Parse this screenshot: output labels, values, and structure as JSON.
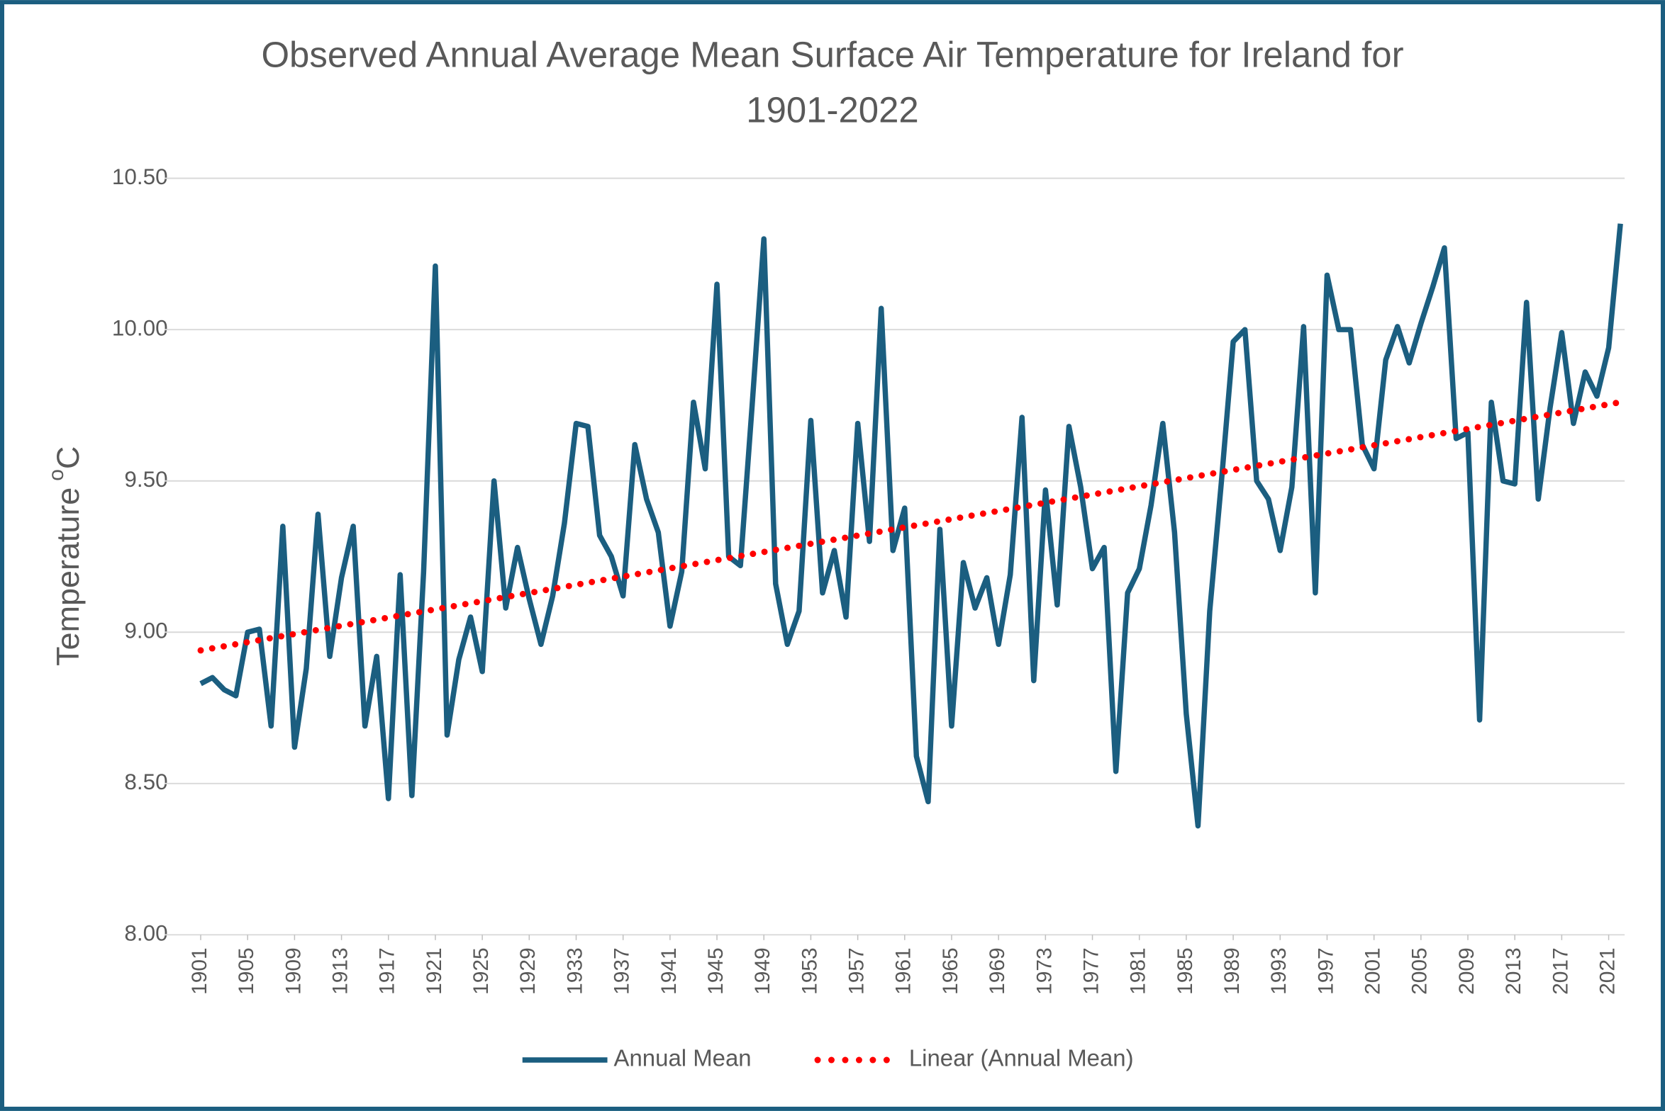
{
  "chart_data": {
    "type": "line",
    "title": [
      "Observed Annual Average Mean Surface Air Temperature for Ireland for",
      "1901-2022"
    ],
    "y_label": {
      "main": "Temperature",
      "superscript": "o",
      "unit": "C"
    },
    "x": [
      1901,
      1902,
      1903,
      1904,
      1905,
      1906,
      1907,
      1908,
      1909,
      1910,
      1911,
      1912,
      1913,
      1914,
      1915,
      1916,
      1917,
      1918,
      1919,
      1920,
      1921,
      1922,
      1923,
      1924,
      1925,
      1926,
      1927,
      1928,
      1929,
      1930,
      1931,
      1932,
      1933,
      1934,
      1935,
      1936,
      1937,
      1938,
      1939,
      1940,
      1941,
      1942,
      1943,
      1944,
      1945,
      1946,
      1947,
      1948,
      1949,
      1950,
      1951,
      1952,
      1953,
      1954,
      1955,
      1956,
      1957,
      1958,
      1959,
      1960,
      1961,
      1962,
      1963,
      1964,
      1965,
      1966,
      1967,
      1968,
      1969,
      1970,
      1971,
      1972,
      1973,
      1974,
      1975,
      1976,
      1977,
      1978,
      1979,
      1980,
      1981,
      1982,
      1983,
      1984,
      1985,
      1986,
      1987,
      1988,
      1989,
      1990,
      1991,
      1992,
      1993,
      1994,
      1995,
      1996,
      1997,
      1998,
      1999,
      2000,
      2001,
      2002,
      2003,
      2004,
      2005,
      2006,
      2007,
      2008,
      2009,
      2010,
      2011,
      2012,
      2013,
      2014,
      2015,
      2016,
      2017,
      2018,
      2019,
      2020,
      2021,
      2022
    ],
    "series": [
      {
        "name": "Annual Mean",
        "color": "#1b5e80",
        "values": [
          8.83,
          8.85,
          8.81,
          8.79,
          9.0,
          9.01,
          8.69,
          9.35,
          8.62,
          8.88,
          9.39,
          8.92,
          9.18,
          9.35,
          8.69,
          8.92,
          8.45,
          9.19,
          8.46,
          9.2,
          10.21,
          8.66,
          8.91,
          9.05,
          8.87,
          9.5,
          9.08,
          9.28,
          9.11,
          8.96,
          9.12,
          9.36,
          9.69,
          9.68,
          9.32,
          9.25,
          9.12,
          9.62,
          9.44,
          9.33,
          9.02,
          9.2,
          9.76,
          9.54,
          10.15,
          9.25,
          9.22,
          9.75,
          10.3,
          9.16,
          8.96,
          9.07,
          9.7,
          9.13,
          9.27,
          9.05,
          9.69,
          9.3,
          10.07,
          9.27,
          9.41,
          8.59,
          8.44,
          9.34,
          8.69,
          9.23,
          9.08,
          9.18,
          8.96,
          9.19,
          9.71,
          8.84,
          9.47,
          9.09,
          9.68,
          9.48,
          9.21,
          9.28,
          8.54,
          9.13,
          9.21,
          9.42,
          9.69,
          9.33,
          8.73,
          8.36,
          9.07,
          9.5,
          9.96,
          10.0,
          9.5,
          9.44,
          9.27,
          9.48,
          10.01,
          9.13,
          10.18,
          10.0,
          10.0,
          9.62,
          9.54,
          9.9,
          10.01,
          9.89,
          10.02,
          10.14,
          10.27,
          9.64,
          9.66,
          8.71,
          9.76,
          9.5,
          9.49,
          10.09,
          9.44,
          9.74,
          9.99,
          9.69,
          9.86,
          9.78,
          9.94,
          10.35
        ]
      }
    ],
    "trendline": {
      "name": "Linear (Annual Mean)",
      "color": "#ff0000",
      "x": [
        1901,
        2022
      ],
      "values": [
        8.94,
        9.76
      ]
    },
    "xlim": [
      1901,
      2022
    ],
    "xticks": [
      1901,
      1905,
      1909,
      1913,
      1917,
      1921,
      1925,
      1929,
      1933,
      1937,
      1941,
      1945,
      1949,
      1953,
      1957,
      1961,
      1965,
      1969,
      1973,
      1977,
      1981,
      1985,
      1989,
      1993,
      1997,
      2001,
      2005,
      2009,
      2013,
      2017,
      2021
    ],
    "ylim": [
      8,
      10.5
    ],
    "yticks": [
      {
        "value": 8,
        "label": "8.00"
      },
      {
        "value": 8.5,
        "label": "8.50"
      },
      {
        "value": 9,
        "label": "9.00"
      },
      {
        "value": 9.5,
        "label": "9.50"
      },
      {
        "value": 10,
        "label": "10.00"
      },
      {
        "value": 10.5,
        "label": "10.50"
      }
    ],
    "grid": true,
    "legend": "bottom"
  }
}
